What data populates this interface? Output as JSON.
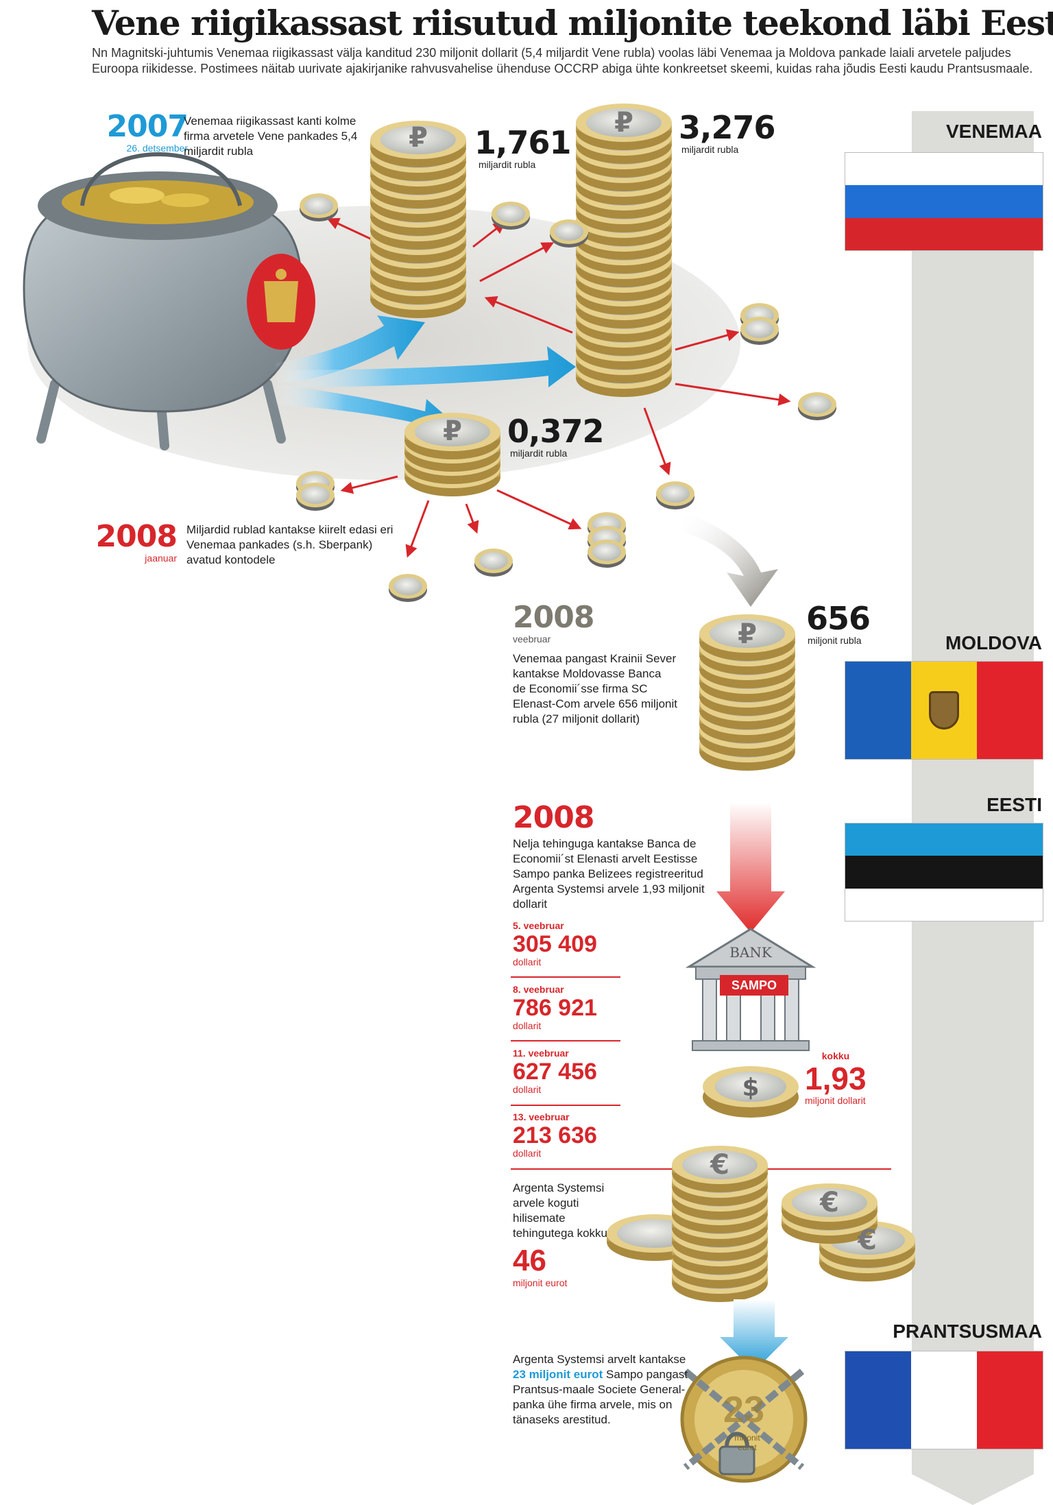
{
  "header": {
    "title": "Vene riigikassast riisutud miljonite teekond läbi Eesti",
    "intro": "Nn Magnitski-juhtumis Venemaa riigikassast välja kanditud 230 miljonit dollarit (5,4 miljardit Vene rubla) voolas läbi Venemaa ja Moldova pankade laiali arvetele paljudes Euroopa riikidesse. Postimees näitab uurivate ajakirjanike rahvusvahelise ühenduse OCCRP abiga ühte konkreetset skeemi, kuidas raha jõudis Eesti kaudu Prantsusmaale."
  },
  "countries": {
    "russia": "VENEMAA",
    "moldova": "MOLDOVA",
    "estonia": "EESTI",
    "france": "PRANTSUSMAA"
  },
  "events": {
    "e2007": {
      "year": "2007",
      "date": "26. detsember",
      "text": "Venemaa riigikassast kanti kolme firma arvetele Vene pankades 5,4 miljardit rubla"
    },
    "e2008_jan": {
      "year": "2008",
      "date": "jaanuar",
      "text": "Miljardid rublad kantakse kiirelt edasi eri Venemaa pankades (s.h. Sberpank) avatud kontodele"
    },
    "e2008_feb": {
      "year": "2008",
      "date": "veebruar",
      "text": "Venemaa pangast Krainii Sever kantakse Moldovasse Banca de Economii´sse firma SC Elenast-Com arvele 656 miljonit rubla (27 miljonit dollarit)"
    },
    "e2008_est": {
      "year": "2008",
      "text": "Nelja tehinguga kantakse Banca de Economii´st Elenasti arvelt Eestisse Sampo panka Belizees registreeritud Argenta Systemsi arvele 1,93 miljonit dollarit"
    }
  },
  "amounts": {
    "a1": {
      "value": "1,761",
      "unit": "miljardit rubla"
    },
    "a2": {
      "value": "3,276",
      "unit": "miljardit rubla"
    },
    "a3": {
      "value": "0,372",
      "unit": "miljardit rubla"
    },
    "moldova": {
      "value": "656",
      "unit": "miljonit rubla"
    },
    "total": {
      "label": "kokku",
      "value": "1,93",
      "unit": "miljonit dollarit"
    }
  },
  "transactions": [
    {
      "date": "5. veebruar",
      "value": "305 409",
      "unit": "dollarit"
    },
    {
      "date": "8. veebruar",
      "value": "786 921",
      "unit": "dollarit"
    },
    {
      "date": "11. veebruar",
      "value": "627 456",
      "unit": "dollarit"
    },
    {
      "date": "13. veebruar",
      "value": "213 636",
      "unit": "dollarit"
    }
  ],
  "argenta": {
    "text": "Argenta Systemsi arvele koguti hilisemate tehingutega kokku",
    "value": "46",
    "unit": "miljonit eurot"
  },
  "france_note": {
    "pre": "Argenta Systemsi arvelt kantakse",
    "highlight": "23 miljonit eurot",
    "post": "Sampo pangast Prantsus-maale Societe General-panka ühe firma arvele, mis on tänaseks arestitud."
  },
  "bank": {
    "sign": "BANK",
    "name": "SAMPO"
  },
  "locked_coin": {
    "value": "23",
    "unit_line1": "miljonit",
    "unit_line2": "eurot"
  },
  "colors": {
    "blue": "#1e9ad6",
    "red": "#d7262b",
    "gray": "#7d7a70",
    "coin_gold": "#d9c27a",
    "coin_silver": "#c9ccc7"
  }
}
